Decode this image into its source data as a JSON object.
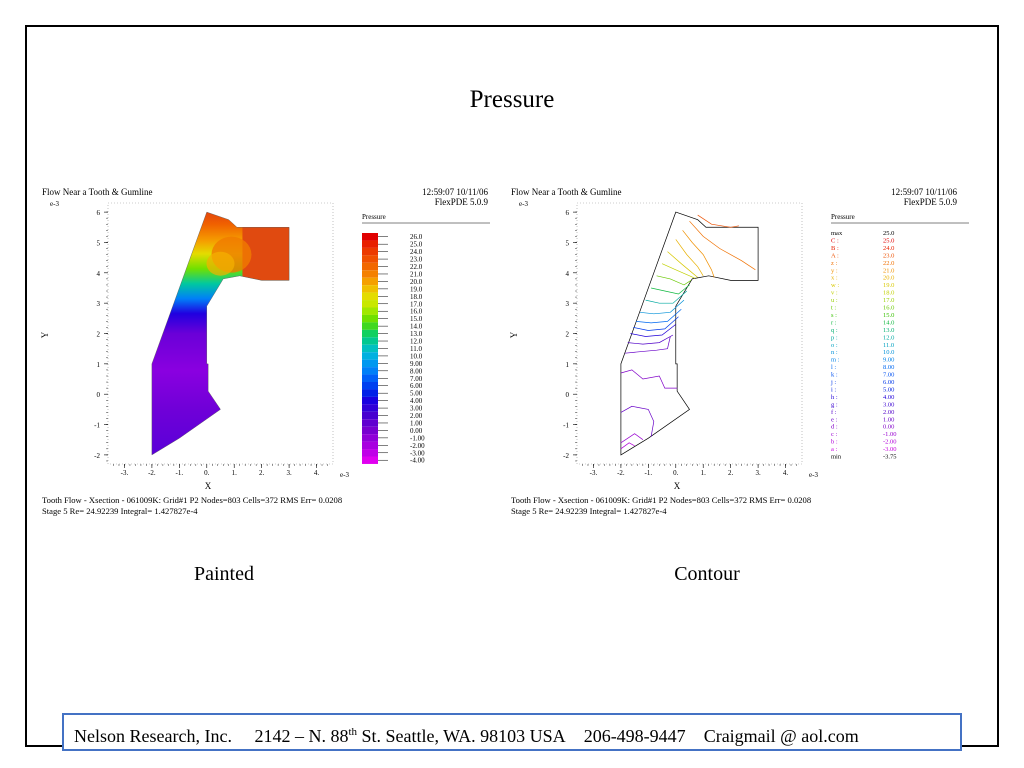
{
  "slide": {
    "title": "Pressure"
  },
  "plots": [
    {
      "kind": "painted",
      "caption": "Painted",
      "title": "Flow Near a Tooth & Gumline",
      "timestamp": "12:59:07 10/11/06",
      "version": "FlexPDE 5.0.9",
      "y_exponent": "e-3",
      "x_exponent": "e-3",
      "xlabel": "X",
      "ylabel": "Y",
      "legend_title": "Pressure",
      "footer_line1": "Tooth Flow - Xsection - 061009K:  Grid#1  P2  Nodes=803  Cells=372  RMS Err= 0.0208",
      "footer_line2": "Stage 5  Re=  24.92239  Integral=  1.427827e-4"
    },
    {
      "kind": "contour",
      "caption": "Contour",
      "title": "Flow Near a Tooth & Gumline",
      "timestamp": "12:59:07 10/11/06",
      "version": "FlexPDE 5.0.9",
      "y_exponent": "e-3",
      "x_exponent": "e-3",
      "xlabel": "X",
      "ylabel": "Y",
      "legend_title": "Pressure",
      "footer_line1": "Tooth Flow - Xsection - 061009K:  Grid#1  P2  Nodes=803  Cells=372 RMS Err= 0.0208",
      "footer_line2": "Stage 5  Re=  24.92239  Integral=  1.427827e-4"
    }
  ],
  "chart_data": [
    {
      "type": "heatmap",
      "title": "Flow Near a Tooth & Gumline",
      "xlabel": "X",
      "ylabel": "Y",
      "xlim": [
        -3.6,
        4.6
      ],
      "ylim": [
        -2.3,
        6.3
      ],
      "x_ticks": [
        "-3.",
        "-2.",
        "-1.",
        "0.",
        "1.",
        "2.",
        "3.",
        "4."
      ],
      "y_ticks": [
        "-2",
        "-1",
        "0",
        "1",
        "2",
        "3",
        "4",
        "5",
        "6"
      ],
      "legend": {
        "title": "Pressure",
        "levels": [
          "26.0",
          "25.0",
          "24.0",
          "23.0",
          "22.0",
          "21.0",
          "20.0",
          "19.0",
          "18.0",
          "17.0",
          "16.0",
          "15.0",
          "14.0",
          "13.0",
          "12.0",
          "11.0",
          "10.0",
          "9.00",
          "8.00",
          "7.00",
          "6.00",
          "5.00",
          "4.00",
          "3.00",
          "2.00",
          "1.00",
          "0.00",
          "-1.00",
          "-2.00",
          "-3.00",
          "-4.00"
        ],
        "colors": [
          "#e00000",
          "#e82000",
          "#ec3a00",
          "#f05000",
          "#f26800",
          "#f48000",
          "#f5a000",
          "#f0c000",
          "#e4dc00",
          "#c8e800",
          "#a0e800",
          "#70e000",
          "#40d820",
          "#10d060",
          "#00c890",
          "#00c0c0",
          "#00b0e0",
          "#0098f0",
          "#0080f8",
          "#0060f8",
          "#0040f0",
          "#0020e8",
          "#1800e0",
          "#3000d8",
          "#4800d0",
          "#6000d0",
          "#7800d0",
          "#9000d8",
          "#a800e0",
          "#c000e8",
          "#e000f0"
        ]
      },
      "footer": "Tooth Flow - Xsection - 061009K:  Grid#1  P2  Nodes=803  Cells=372  RMS Err= 0.0208"
    },
    {
      "type": "line",
      "title": "Flow Near a Tooth & Gumline",
      "xlabel": "X",
      "ylabel": "Y",
      "xlim": [
        -3.6,
        4.6
      ],
      "ylim": [
        -2.3,
        6.3
      ],
      "x_ticks": [
        "-3.",
        "-2.",
        "-1.",
        "0.",
        "1.",
        "2.",
        "3.",
        "4."
      ],
      "y_ticks": [
        "-2",
        "-1",
        "0",
        "1",
        "2",
        "3",
        "4",
        "5",
        "6"
      ],
      "legend": {
        "title": "Pressure",
        "entries": [
          {
            "label": "max",
            "value": "25.0",
            "color": "#000000"
          },
          {
            "label": "C :",
            "value": "25.0",
            "color": "#e00000"
          },
          {
            "label": "B :",
            "value": "24.0",
            "color": "#e82000"
          },
          {
            "label": "A :",
            "value": "23.0",
            "color": "#ec5000"
          },
          {
            "label": "z :",
            "value": "22.0",
            "color": "#f07000"
          },
          {
            "label": "y :",
            "value": "21.0",
            "color": "#f09000"
          },
          {
            "label": "x :",
            "value": "20.0",
            "color": "#e8b000"
          },
          {
            "label": "w :",
            "value": "19.0",
            "color": "#d8c800"
          },
          {
            "label": "v :",
            "value": "18.0",
            "color": "#c0d000"
          },
          {
            "label": "u :",
            "value": "17.0",
            "color": "#98d000"
          },
          {
            "label": "t :",
            "value": "16.0",
            "color": "#68c800"
          },
          {
            "label": "s :",
            "value": "15.0",
            "color": "#38c000"
          },
          {
            "label": "r :",
            "value": "14.0",
            "color": "#10b840"
          },
          {
            "label": "q :",
            "value": "13.0",
            "color": "#00b070"
          },
          {
            "label": "p :",
            "value": "12.0",
            "color": "#00a8a0"
          },
          {
            "label": "o :",
            "value": "11.0",
            "color": "#00a0c0"
          },
          {
            "label": "n :",
            "value": "10.0",
            "color": "#0090d8"
          },
          {
            "label": "m :",
            "value": "9.00",
            "color": "#0080e8"
          },
          {
            "label": "l :",
            "value": "8.00",
            "color": "#0068f0"
          },
          {
            "label": "k :",
            "value": "7.00",
            "color": "#0050f0"
          },
          {
            "label": "j :",
            "value": "6.00",
            "color": "#0038e8"
          },
          {
            "label": "i :",
            "value": "5.00",
            "color": "#0020e0"
          },
          {
            "label": "h :",
            "value": "4.00",
            "color": "#2000d8"
          },
          {
            "label": "g :",
            "value": "3.00",
            "color": "#3800d0"
          },
          {
            "label": "f :",
            "value": "2.00",
            "color": "#5000c8"
          },
          {
            "label": "e :",
            "value": "1.00",
            "color": "#6800c8"
          },
          {
            "label": "d :",
            "value": "0.00",
            "color": "#8000c8"
          },
          {
            "label": "c :",
            "value": "-1.00",
            "color": "#9800d0"
          },
          {
            "label": "b :",
            "value": "-2.00",
            "color": "#b000d8"
          },
          {
            "label": "a :",
            "value": "-3.00",
            "color": "#c800e0"
          },
          {
            "label": "min",
            "value": "-3.75",
            "color": "#000000"
          }
        ]
      },
      "footer": "Tooth Flow - Xsection - 061009K:  Grid#1  P2  Nodes=803  Cells=372 RMS Err= 0.0208"
    }
  ],
  "footer": {
    "company": "Nelson Research, Inc.",
    "address_pre": "2142 –  N. 88",
    "address_sup": "th",
    "address_post": " St. Seattle, WA. 98103   USA",
    "phone": "206-498-9447",
    "email": "Craigmail @ aol.com"
  }
}
